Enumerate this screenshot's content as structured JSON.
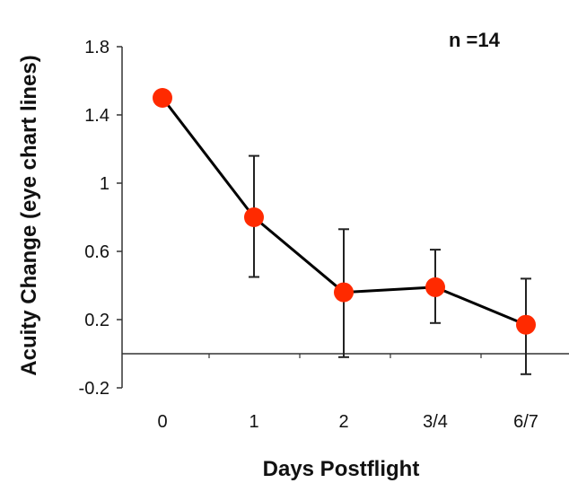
{
  "chart_data": {
    "type": "line",
    "title": "",
    "annotation": "n =14",
    "xlabel": "Days Postflight",
    "ylabel": "Acuity Change (eye chart lines)",
    "categories": [
      "0",
      "1",
      "2",
      "3/4",
      "6/7"
    ],
    "yticks": [
      "-0.2",
      "0.2",
      "0.6",
      "1",
      "1.4",
      "1.8"
    ],
    "ylim": [
      -0.2,
      1.8
    ],
    "reference_line": 0,
    "grid": false,
    "series": [
      {
        "values": [
          1.5,
          0.8,
          0.36,
          0.39,
          0.17
        ],
        "error_low": [
          null,
          0.45,
          -0.02,
          0.18,
          -0.12
        ],
        "error_high": [
          null,
          1.16,
          0.73,
          0.61,
          0.44
        ],
        "line_color": "#000000",
        "marker_color": "#ff2a00"
      }
    ]
  }
}
